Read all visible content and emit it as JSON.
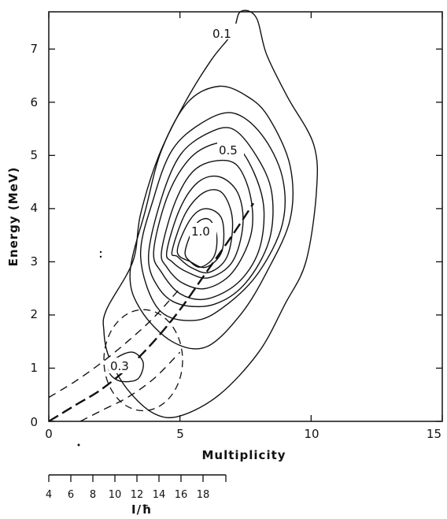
{
  "chart_data": {
    "type": "contour",
    "title": "",
    "xlabel": "Multiplicity",
    "ylabel": "Energy (MeV)",
    "xlim": [
      0,
      15
    ],
    "ylim": [
      0,
      7.7
    ],
    "x_ticks": [
      "0",
      "5",
      "10",
      "15"
    ],
    "y_ticks": [
      "0",
      "1",
      "2",
      "3",
      "4",
      "5",
      "6",
      "7"
    ],
    "secondary_axis": {
      "label": "I/ħ",
      "ticks": [
        "4",
        "6",
        "8",
        "10",
        "12",
        "14",
        "16",
        "18"
      ]
    },
    "contour_labels": [
      "0.1",
      "0.5",
      "1.0",
      "0.3"
    ],
    "levels": [
      {
        "label": "0.1",
        "points": [
          [
            2.2,
            2.1
          ],
          [
            3.2,
            3.0
          ],
          [
            3.5,
            3.9
          ],
          [
            4.2,
            5.0
          ],
          [
            5.2,
            6.0
          ],
          [
            6.2,
            6.8
          ],
          [
            7.0,
            7.3
          ],
          [
            7.3,
            7.7
          ],
          [
            7.9,
            7.6
          ],
          [
            8.3,
            6.9
          ],
          [
            9.1,
            6.1
          ],
          [
            10.1,
            5.2
          ],
          [
            10.2,
            4.3
          ],
          [
            9.8,
            3.0
          ],
          [
            9.0,
            2.2
          ],
          [
            8.0,
            1.3
          ],
          [
            6.5,
            0.5
          ],
          [
            5.0,
            0.1
          ],
          [
            4.0,
            0.15
          ],
          [
            3.0,
            0.6
          ],
          [
            2.3,
            1.2
          ],
          [
            2.1,
            1.7
          ]
        ]
      },
      {
        "points": [
          [
            3.1,
            2.8
          ],
          [
            3.7,
            4.0
          ],
          [
            4.3,
            5.1
          ],
          [
            5.3,
            6.0
          ],
          [
            6.5,
            6.3
          ],
          [
            7.6,
            6.1
          ],
          [
            8.4,
            5.7
          ],
          [
            9.2,
            4.8
          ],
          [
            9.2,
            3.8
          ],
          [
            8.3,
            2.8
          ],
          [
            7.3,
            2.0
          ],
          [
            6.0,
            1.4
          ],
          [
            4.7,
            1.5
          ],
          [
            3.5,
            2.1
          ]
        ]
      },
      {
        "points": [
          [
            3.5,
            3.1
          ],
          [
            4.0,
            4.2
          ],
          [
            4.7,
            5.1
          ],
          [
            5.8,
            5.6
          ],
          [
            7.0,
            5.8
          ],
          [
            8.1,
            5.4
          ],
          [
            8.9,
            4.6
          ],
          [
            8.9,
            3.7
          ],
          [
            8.0,
            2.8
          ],
          [
            6.8,
            2.2
          ],
          [
            5.6,
            1.9
          ],
          [
            4.2,
            2.1
          ]
        ]
      },
      {
        "points": [
          [
            3.8,
            3.1
          ],
          [
            4.3,
            4.2
          ],
          [
            5.0,
            5.0
          ],
          [
            6.0,
            5.4
          ],
          [
            7.0,
            5.5
          ],
          [
            7.9,
            5.0
          ],
          [
            8.5,
            4.3
          ],
          [
            8.4,
            3.4
          ],
          [
            7.5,
            2.6
          ],
          [
            6.3,
            2.2
          ],
          [
            5.0,
            2.2
          ],
          [
            4.2,
            2.5
          ]
        ]
      },
      {
        "label": "0.5",
        "points": [
          [
            4.0,
            3.2
          ],
          [
            4.5,
            4.2
          ],
          [
            5.3,
            4.9
          ],
          [
            6.2,
            5.2
          ],
          [
            7.1,
            5.2
          ],
          [
            7.8,
            4.7
          ],
          [
            8.2,
            4.0
          ],
          [
            8.0,
            3.2
          ],
          [
            7.2,
            2.6
          ],
          [
            6.0,
            2.3
          ],
          [
            5.0,
            2.4
          ],
          [
            4.3,
            2.8
          ]
        ]
      },
      {
        "points": [
          [
            4.3,
            3.2
          ],
          [
            4.8,
            4.1
          ],
          [
            5.5,
            4.7
          ],
          [
            6.4,
            4.9
          ],
          [
            7.2,
            4.8
          ],
          [
            7.7,
            4.2
          ],
          [
            7.7,
            3.5
          ],
          [
            7.0,
            2.8
          ],
          [
            6.0,
            2.5
          ],
          [
            5.1,
            2.6
          ],
          [
            4.5,
            2.9
          ]
        ]
      },
      {
        "points": [
          [
            4.5,
            3.2
          ],
          [
            5.0,
            4.0
          ],
          [
            5.7,
            4.5
          ],
          [
            6.5,
            4.6
          ],
          [
            7.2,
            4.3
          ],
          [
            7.4,
            3.7
          ],
          [
            7.0,
            3.0
          ],
          [
            6.1,
            2.7
          ],
          [
            5.3,
            2.8
          ],
          [
            4.7,
            3.0
          ]
        ]
      },
      {
        "points": [
          [
            4.7,
            3.2
          ],
          [
            5.2,
            3.9
          ],
          [
            5.9,
            4.3
          ],
          [
            6.6,
            4.3
          ],
          [
            7.0,
            3.8
          ],
          [
            6.8,
            3.1
          ],
          [
            6.1,
            2.8
          ],
          [
            5.4,
            2.9
          ],
          [
            4.9,
            3.1
          ]
        ]
      },
      {
        "points": [
          [
            4.9,
            3.2
          ],
          [
            5.4,
            3.8
          ],
          [
            6.0,
            4.0
          ],
          [
            6.6,
            3.8
          ],
          [
            6.6,
            3.2
          ],
          [
            6.0,
            2.9
          ],
          [
            5.4,
            3.0
          ]
        ]
      },
      {
        "label": "1.0",
        "points": [
          [
            5.2,
            3.2
          ],
          [
            5.6,
            3.7
          ],
          [
            6.1,
            3.8
          ],
          [
            6.4,
            3.5
          ],
          [
            6.3,
            3.1
          ],
          [
            5.8,
            2.9
          ],
          [
            5.4,
            3.0
          ]
        ]
      },
      {
        "label": "0.3",
        "points": [
          [
            2.3,
            1.0
          ],
          [
            2.6,
            1.2
          ],
          [
            3.2,
            1.3
          ],
          [
            3.6,
            1.1
          ],
          [
            3.4,
            0.8
          ],
          [
            2.8,
            0.75
          ],
          [
            2.4,
            0.85
          ]
        ]
      }
    ],
    "ellipse": {
      "cx": 3.6,
      "cy": 1.15,
      "rx": 1.5,
      "ry": 0.95,
      "style": "dashed"
    },
    "dashed_curves": [
      {
        "name": "central",
        "points": [
          [
            0,
            0
          ],
          [
            1,
            0.3
          ],
          [
            2,
            0.6
          ],
          [
            3,
            1.0
          ],
          [
            4,
            1.5
          ],
          [
            5,
            2.1
          ],
          [
            6,
            2.8
          ],
          [
            7,
            3.5
          ],
          [
            7.8,
            4.1
          ]
        ]
      },
      {
        "name": "upper",
        "points": [
          [
            0,
            0.45
          ],
          [
            1,
            0.75
          ],
          [
            2,
            1.1
          ],
          [
            3,
            1.5
          ],
          [
            4,
            1.95
          ],
          [
            5,
            2.5
          ]
        ]
      },
      {
        "name": "lower",
        "points": [
          [
            1.2,
            0
          ],
          [
            2,
            0.2
          ],
          [
            3,
            0.45
          ],
          [
            4,
            0.8
          ],
          [
            5,
            1.3
          ]
        ]
      }
    ]
  }
}
